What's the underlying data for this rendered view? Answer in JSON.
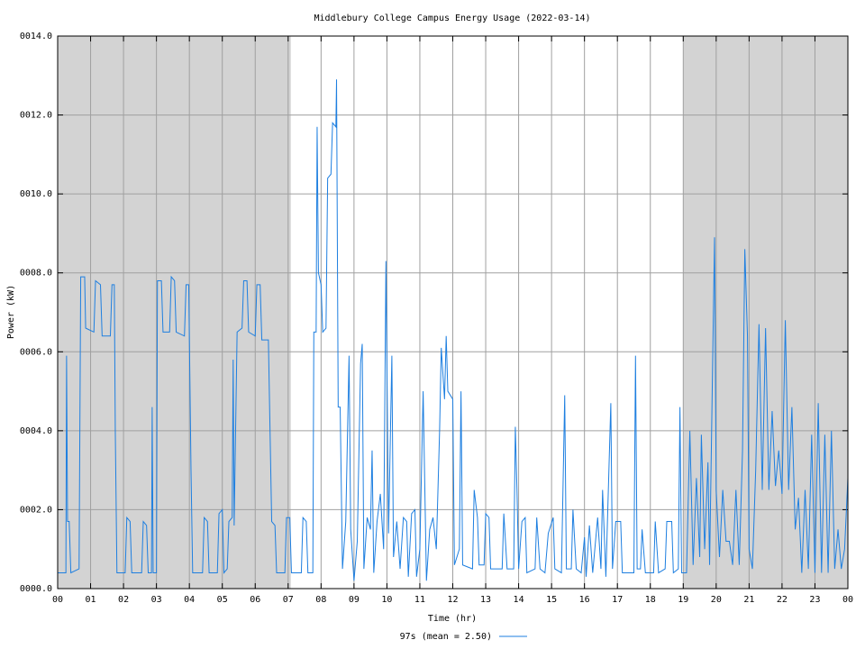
{
  "chart_data": {
    "type": "line",
    "title": "Middlebury College Campus Energy Usage (2022-03-14)",
    "x_label": "Time (hr)",
    "y_label": "Power (kW)",
    "xlim": [
      0,
      24
    ],
    "ylim": [
      0,
      14
    ],
    "grid": true,
    "legend": "bottom",
    "shaded_ranges": [
      [
        0,
        7.08
      ],
      [
        19,
        24
      ]
    ],
    "shade_color": "#d3d3d3",
    "xticks": [
      {
        "value": 0,
        "label": "00"
      },
      {
        "value": 1,
        "label": "01"
      },
      {
        "value": 2,
        "label": "02"
      },
      {
        "value": 3,
        "label": "03"
      },
      {
        "value": 4,
        "label": "04"
      },
      {
        "value": 5,
        "label": "05"
      },
      {
        "value": 6,
        "label": "06"
      },
      {
        "value": 7,
        "label": "07"
      },
      {
        "value": 8,
        "label": "08"
      },
      {
        "value": 9,
        "label": "09"
      },
      {
        "value": 10,
        "label": "10"
      },
      {
        "value": 11,
        "label": "11"
      },
      {
        "value": 12,
        "label": "12"
      },
      {
        "value": 13,
        "label": "13"
      },
      {
        "value": 14,
        "label": "14"
      },
      {
        "value": 15,
        "label": "15"
      },
      {
        "value": 16,
        "label": "16"
      },
      {
        "value": 17,
        "label": "17"
      },
      {
        "value": 18,
        "label": "18"
      },
      {
        "value": 19,
        "label": "19"
      },
      {
        "value": 20,
        "label": "20"
      },
      {
        "value": 21,
        "label": "21"
      },
      {
        "value": 22,
        "label": "22"
      },
      {
        "value": 23,
        "label": "23"
      },
      {
        "value": 24,
        "label": "00"
      }
    ],
    "yticks": [
      {
        "value": 0,
        "label": "0000.0"
      },
      {
        "value": 2,
        "label": "0002.0"
      },
      {
        "value": 4,
        "label": "0004.0"
      },
      {
        "value": 6,
        "label": "0006.0"
      },
      {
        "value": 8,
        "label": "0008.0"
      },
      {
        "value": 10,
        "label": "0010.0"
      },
      {
        "value": 12,
        "label": "0012.0"
      },
      {
        "value": 14,
        "label": "0014.0"
      }
    ],
    "x": [
      0.0,
      0.25,
      0.27,
      0.3,
      0.35,
      0.4,
      0.65,
      0.7,
      0.82,
      0.85,
      1.1,
      1.15,
      1.3,
      1.35,
      1.6,
      1.65,
      1.72,
      1.75,
      1.8,
      2.05,
      2.1,
      2.2,
      2.25,
      2.55,
      2.6,
      2.7,
      2.75,
      2.85,
      2.87,
      2.9,
      3.0,
      3.03,
      3.15,
      3.2,
      3.4,
      3.45,
      3.55,
      3.6,
      3.85,
      3.9,
      3.98,
      4.05,
      4.1,
      4.4,
      4.45,
      4.55,
      4.6,
      4.85,
      4.9,
      5.0,
      5.05,
      5.15,
      5.2,
      5.3,
      5.33,
      5.36,
      5.45,
      5.6,
      5.65,
      5.75,
      5.8,
      6.0,
      6.05,
      6.15,
      6.2,
      6.4,
      6.45,
      6.5,
      6.6,
      6.65,
      6.9,
      6.95,
      7.05,
      7.1,
      7.4,
      7.45,
      7.55,
      7.6,
      7.75,
      7.78,
      7.85,
      7.88,
      7.92,
      8.0,
      8.05,
      8.15,
      8.2,
      8.3,
      8.35,
      8.45,
      8.47,
      8.52,
      8.58,
      8.65,
      8.75,
      8.85,
      8.9,
      9.0,
      9.1,
      9.2,
      9.25,
      9.3,
      9.4,
      9.5,
      9.55,
      9.6,
      9.7,
      9.8,
      9.9,
      9.97,
      10.05,
      10.15,
      10.2,
      10.3,
      10.4,
      10.5,
      10.6,
      10.65,
      10.75,
      10.85,
      10.9,
      11.0,
      11.1,
      11.2,
      11.3,
      11.4,
      11.5,
      11.6,
      11.65,
      11.75,
      11.8,
      11.85,
      12.0,
      12.05,
      12.2,
      12.25,
      12.3,
      12.6,
      12.65,
      12.75,
      12.8,
      12.95,
      13.0,
      13.1,
      13.15,
      13.5,
      13.55,
      13.65,
      13.85,
      13.9,
      13.95,
      14.0,
      14.1,
      14.2,
      14.25,
      14.5,
      14.55,
      14.65,
      14.8,
      14.9,
      15.05,
      15.1,
      15.3,
      15.4,
      15.45,
      15.6,
      15.65,
      15.75,
      15.9,
      16.0,
      16.05,
      16.15,
      16.25,
      16.4,
      16.5,
      16.55,
      16.65,
      16.8,
      16.85,
      16.95,
      17.1,
      17.15,
      17.5,
      17.55,
      17.6,
      17.7,
      17.75,
      17.85,
      18.1,
      18.15,
      18.25,
      18.45,
      18.5,
      18.65,
      18.7,
      18.85,
      18.9,
      18.95,
      19.1,
      19.2,
      19.3,
      19.4,
      19.5,
      19.55,
      19.65,
      19.75,
      19.8,
      19.95,
      20.0,
      20.1,
      20.2,
      20.3,
      20.4,
      20.5,
      20.6,
      20.7,
      20.8,
      20.87,
      20.95,
      21.0,
      21.1,
      21.2,
      21.3,
      21.4,
      21.5,
      21.6,
      21.7,
      21.8,
      21.9,
      22.0,
      22.1,
      22.2,
      22.3,
      22.4,
      22.5,
      22.6,
      22.7,
      22.8,
      22.9,
      23.0,
      23.1,
      23.2,
      23.3,
      23.4,
      23.5,
      23.6,
      23.7,
      23.8,
      23.9,
      24.0
    ],
    "series": [
      {
        "name": "97s (mean = 2.50)",
        "color": "#1e7fe0",
        "values": [
          0.4,
          0.4,
          5.9,
          1.7,
          1.7,
          0.4,
          0.5,
          7.9,
          7.9,
          6.6,
          6.5,
          7.8,
          7.7,
          6.4,
          6.4,
          7.7,
          7.7,
          4,
          0.4,
          0.4,
          1.8,
          1.7,
          0.4,
          0.4,
          1.7,
          1.6,
          0.4,
          0.4,
          4.6,
          0.4,
          0.4,
          7.8,
          7.8,
          6.5,
          6.5,
          7.9,
          7.8,
          6.5,
          6.4,
          7.7,
          7.7,
          3,
          0.4,
          0.4,
          1.8,
          1.7,
          0.4,
          0.4,
          1.9,
          2.0,
          0.4,
          0.5,
          1.7,
          1.8,
          5.8,
          1.6,
          6.5,
          6.6,
          7.8,
          7.8,
          6.5,
          6.4,
          7.7,
          7.7,
          6.3,
          6.3,
          4,
          1.7,
          1.6,
          0.4,
          0.4,
          1.8,
          1.8,
          0.4,
          0.4,
          1.8,
          1.7,
          0.4,
          0.4,
          6.5,
          6.5,
          11.7,
          8.0,
          7.7,
          6.5,
          6.6,
          10.4,
          10.5,
          11.8,
          11.7,
          12.9,
          4.6,
          4.6,
          0.5,
          1.7,
          5.9,
          1.5,
          0.2,
          1.2,
          5.7,
          6.2,
          0.5,
          1.8,
          1.5,
          3.5,
          0.4,
          1.7,
          2.4,
          1.0,
          8.3,
          1.4,
          5.9,
          0.8,
          1.7,
          0.5,
          1.8,
          1.7,
          0.3,
          1.9,
          2.0,
          0.3,
          1.0,
          5.0,
          0.2,
          1.5,
          1.8,
          1.0,
          4.0,
          6.1,
          4.8,
          6.4,
          5.0,
          4.8,
          0.6,
          1.0,
          5.0,
          0.6,
          0.5,
          2.5,
          1.8,
          0.6,
          0.6,
          1.9,
          1.8,
          0.5,
          0.5,
          1.9,
          0.5,
          0.5,
          4.1,
          2.5,
          0.5,
          1.7,
          1.8,
          0.4,
          0.5,
          1.8,
          0.5,
          0.4,
          1.4,
          1.8,
          0.5,
          0.4,
          4.9,
          0.5,
          0.5,
          2.0,
          0.5,
          0.4,
          1.3,
          0.3,
          1.6,
          0.4,
          1.8,
          0.5,
          2.5,
          0.3,
          4.7,
          0.5,
          1.7,
          1.7,
          0.4,
          0.4,
          5.9,
          0.5,
          0.5,
          1.5,
          0.4,
          0.4,
          1.7,
          0.4,
          0.5,
          1.7,
          1.7,
          0.4,
          0.5,
          4.6,
          0.4,
          0.4,
          4.0,
          0.6,
          2.8,
          0.8,
          3.9,
          1.0,
          3.2,
          0.6,
          8.9,
          2.5,
          0.8,
          2.5,
          1.2,
          1.2,
          0.6,
          2.5,
          0.6,
          3.5,
          8.6,
          6.4,
          1.0,
          0.5,
          3.0,
          6.7,
          2.5,
          6.6,
          2.5,
          4.5,
          2.6,
          3.5,
          2.4,
          6.8,
          2.5,
          4.6,
          1.5,
          2.3,
          0.4,
          2.5,
          0.5,
          3.9,
          0.4,
          4.7,
          0.4,
          3.9,
          0.4,
          4.0,
          0.5,
          1.5,
          0.5,
          1.0,
          2.8
        ]
      }
    ]
  }
}
